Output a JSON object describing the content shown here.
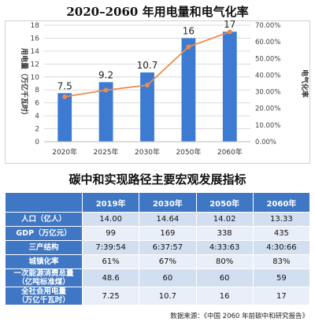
{
  "title": "2020–2060 年用电量和电气化率",
  "chart_data": {
    "type": "bar",
    "categories": [
      "2020年",
      "2025年",
      "2030年",
      "2050年",
      "2060年"
    ],
    "series": [
      {
        "type": "bar",
        "values": [
          7.5,
          9.2,
          10.7,
          16,
          17
        ],
        "color": "#3d7bd3"
      },
      {
        "type": "line",
        "values": [
          27,
          31,
          34,
          57,
          66
        ],
        "axis": "right",
        "color": "#ed8b4d"
      }
    ],
    "data_labels": [
      "7.5",
      "9.2",
      "10.7",
      "16",
      "17"
    ],
    "ylabel_left": "用电量（万亿千瓦时）",
    "ylabel_right": "电气化率",
    "ylim_left": [
      0,
      18
    ],
    "yticks_left": [
      "0",
      "2",
      "4",
      "6",
      "8",
      "10",
      "12",
      "14",
      "16",
      "18"
    ],
    "ylim_right": [
      0,
      70
    ],
    "yticks_right": [
      "0.00%",
      "10.00%",
      "20.00%",
      "30.00%",
      "40.00%",
      "50.00%",
      "60.00%",
      "70.00%"
    ],
    "grid": true
  },
  "table": {
    "title": "碳中和实现路径主要宏观发展指标",
    "headers": [
      "",
      "2019年",
      "2030年",
      "2050年",
      "2060年"
    ],
    "rows": [
      {
        "label": [
          "人口（亿人）"
        ],
        "values": [
          "14.00",
          "14.64",
          "14.02",
          "13.33"
        ]
      },
      {
        "label": [
          "GDP（万亿元）"
        ],
        "values": [
          "99",
          "169",
          "338",
          "435"
        ]
      },
      {
        "label": [
          "三产结构"
        ],
        "values": [
          "7:39:54",
          "6:37:57",
          "4:33:63",
          "4:30:66"
        ]
      },
      {
        "label": [
          "城镇化率"
        ],
        "values": [
          "61%",
          "67%",
          "80%",
          "83%"
        ]
      },
      {
        "label": [
          "一次能源消费总量",
          "（亿吨标准煤）"
        ],
        "values": [
          "48.6",
          "60",
          "60",
          "59"
        ]
      },
      {
        "label": [
          "全社会用电量",
          "（万亿千瓦时）"
        ],
        "values": [
          "7.25",
          "10.7",
          "16",
          "17"
        ]
      }
    ]
  },
  "source": "数据来源：《中国 2060 年前碳中和研究报告》"
}
